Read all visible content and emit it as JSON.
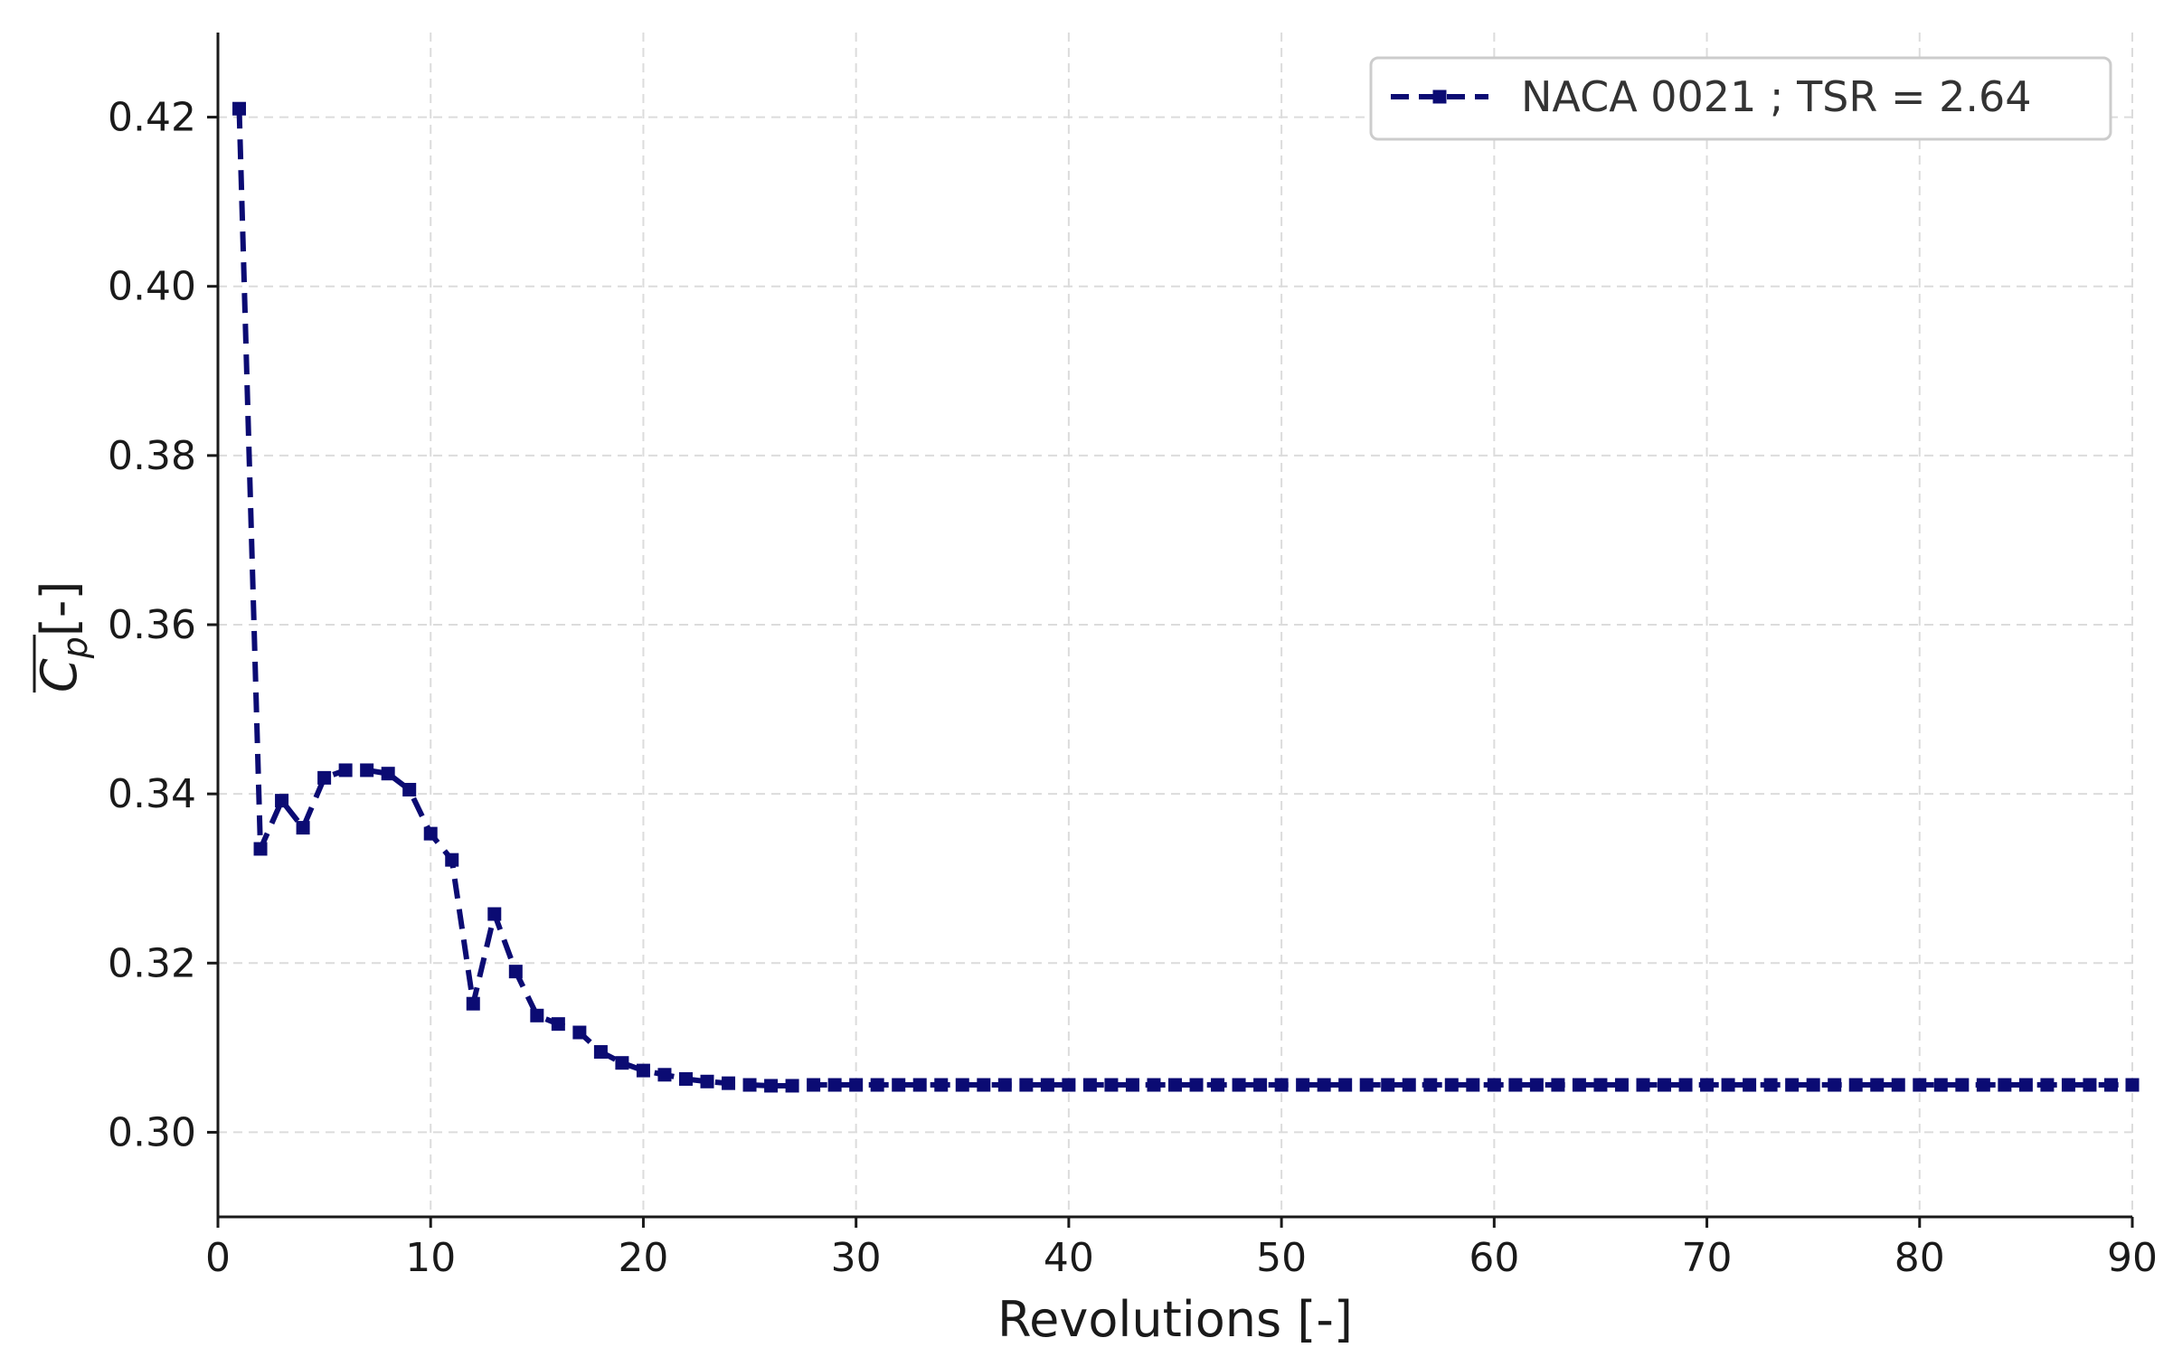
{
  "chart_data": {
    "type": "line",
    "xlabel": "Revolutions [-]",
    "ylabel": {
      "symbol": "C",
      "subscript": "p",
      "overline": true,
      "unit": "[-]"
    },
    "xlim": [
      0,
      90
    ],
    "ylim": [
      0.29,
      0.43
    ],
    "xticks": [
      0,
      10,
      20,
      30,
      40,
      50,
      60,
      70,
      80,
      90
    ],
    "yticks": [
      0.3,
      0.32,
      0.34,
      0.36,
      0.38,
      0.4,
      0.42
    ],
    "ytick_labels": [
      "0.30",
      "0.32",
      "0.34",
      "0.36",
      "0.38",
      "0.40",
      "0.42"
    ],
    "grid": true,
    "legend_position": "top-right",
    "series": [
      {
        "name": "NACA 0021 ; TSR = 2.64",
        "color": "#0b0b73",
        "line_style": "dashed",
        "marker": "square",
        "x": [
          1,
          2,
          3,
          4,
          5,
          6,
          7,
          8,
          9,
          10,
          11,
          12,
          13,
          14,
          15,
          16,
          17,
          18,
          19,
          20,
          21,
          22,
          23,
          24,
          25,
          26,
          27,
          28,
          29,
          30,
          31,
          32,
          33,
          34,
          35,
          36,
          37,
          38,
          39,
          40,
          41,
          42,
          43,
          44,
          45,
          46,
          47,
          48,
          49,
          50,
          51,
          52,
          53,
          54,
          55,
          56,
          57,
          58,
          59,
          60,
          61,
          62,
          63,
          64,
          65,
          66,
          67,
          68,
          69,
          70,
          71,
          72,
          73,
          74,
          75,
          76,
          77,
          78,
          79,
          80,
          81,
          82,
          83,
          84,
          85,
          86,
          87,
          88,
          89,
          90
        ],
        "y": [
          0.421,
          0.3335,
          0.3392,
          0.336,
          0.3419,
          0.3428,
          0.3428,
          0.3424,
          0.3405,
          0.3353,
          0.3322,
          0.3152,
          0.3258,
          0.319,
          0.3138,
          0.3128,
          0.3118,
          0.3095,
          0.3082,
          0.3073,
          0.3068,
          0.3063,
          0.306,
          0.3058,
          0.3056,
          0.3055,
          0.3055,
          0.3056,
          0.3056,
          0.3056,
          0.3056,
          0.3056,
          0.3056,
          0.3056,
          0.3056,
          0.3056,
          0.3056,
          0.3056,
          0.3056,
          0.3056,
          0.3056,
          0.3056,
          0.3056,
          0.3056,
          0.3056,
          0.3056,
          0.3056,
          0.3056,
          0.3056,
          0.3056,
          0.3056,
          0.3056,
          0.3056,
          0.3056,
          0.3056,
          0.3056,
          0.3056,
          0.3056,
          0.3056,
          0.3056,
          0.3056,
          0.3056,
          0.3056,
          0.3056,
          0.3056,
          0.3056,
          0.3056,
          0.3056,
          0.3056,
          0.3056,
          0.3056,
          0.3056,
          0.3056,
          0.3056,
          0.3056,
          0.3056,
          0.3056,
          0.3056,
          0.3056,
          0.3056,
          0.3056,
          0.3056,
          0.3056,
          0.3056,
          0.3056,
          0.3056,
          0.3056,
          0.3056,
          0.3056,
          0.3056
        ]
      }
    ]
  }
}
